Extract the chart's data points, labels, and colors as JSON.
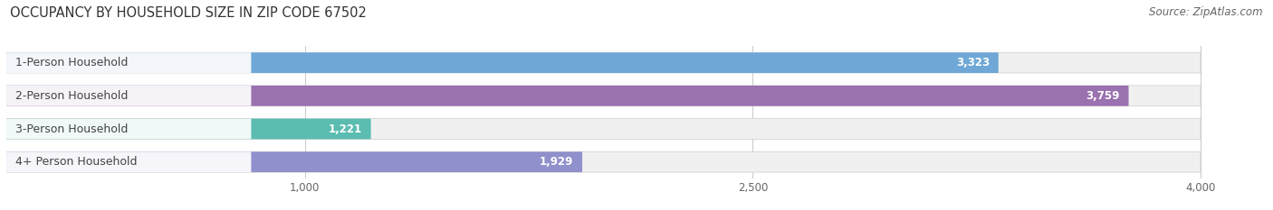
{
  "title": "OCCUPANCY BY HOUSEHOLD SIZE IN ZIP CODE 67502",
  "source": "Source: ZipAtlas.com",
  "categories": [
    "1-Person Household",
    "2-Person Household",
    "3-Person Household",
    "4+ Person Household"
  ],
  "values": [
    3323,
    3759,
    1221,
    1929
  ],
  "bar_colors": [
    "#6fa8d6",
    "#9b72b0",
    "#5bbcb0",
    "#9090cc"
  ],
  "xlim_min": 0,
  "xlim_max": 4200,
  "bar_xlim_max": 4000,
  "xticks": [
    1000,
    2500,
    4000
  ],
  "title_fontsize": 10.5,
  "source_fontsize": 8.5,
  "label_fontsize": 9,
  "value_fontsize": 8.5,
  "tick_fontsize": 8.5,
  "background_color": "#ffffff",
  "bar_bg_color": "#ebebeb",
  "label_bg_color": "#ffffff",
  "grid_color": "#cccccc",
  "text_color": "#444444"
}
